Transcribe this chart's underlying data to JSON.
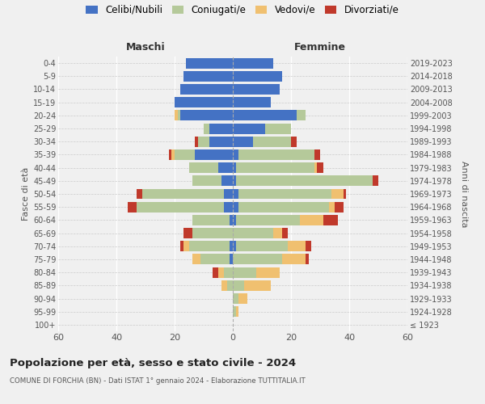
{
  "age_groups": [
    "100+",
    "95-99",
    "90-94",
    "85-89",
    "80-84",
    "75-79",
    "70-74",
    "65-69",
    "60-64",
    "55-59",
    "50-54",
    "45-49",
    "40-44",
    "35-39",
    "30-34",
    "25-29",
    "20-24",
    "15-19",
    "10-14",
    "5-9",
    "0-4"
  ],
  "birth_years": [
    "≤ 1923",
    "1924-1928",
    "1929-1933",
    "1934-1938",
    "1939-1943",
    "1944-1948",
    "1949-1953",
    "1954-1958",
    "1959-1963",
    "1964-1968",
    "1969-1973",
    "1974-1978",
    "1979-1983",
    "1984-1988",
    "1989-1993",
    "1994-1998",
    "1999-2003",
    "2004-2008",
    "2009-2013",
    "2014-2018",
    "2019-2023"
  ],
  "colors": {
    "celibe": "#4472c4",
    "coniugato": "#b5c99a",
    "vedovo": "#f0c070",
    "divorziato": "#c0392b"
  },
  "maschi": {
    "celibe": [
      0,
      0,
      0,
      0,
      0,
      1,
      1,
      0,
      1,
      3,
      3,
      4,
      5,
      13,
      8,
      8,
      18,
      20,
      18,
      17,
      16
    ],
    "coniugato": [
      0,
      0,
      0,
      2,
      3,
      10,
      14,
      14,
      13,
      30,
      28,
      10,
      10,
      7,
      4,
      2,
      1,
      0,
      0,
      0,
      0
    ],
    "vedovo": [
      0,
      0,
      0,
      2,
      2,
      3,
      2,
      0,
      0,
      0,
      0,
      0,
      0,
      1,
      0,
      0,
      1,
      0,
      0,
      0,
      0
    ],
    "divorziato": [
      0,
      0,
      0,
      0,
      2,
      0,
      1,
      3,
      0,
      3,
      2,
      0,
      0,
      1,
      1,
      0,
      0,
      0,
      0,
      0,
      0
    ]
  },
  "femmine": {
    "nubile": [
      0,
      0,
      0,
      0,
      0,
      0,
      1,
      0,
      1,
      2,
      2,
      1,
      1,
      2,
      7,
      11,
      22,
      13,
      16,
      17,
      14
    ],
    "coniugata": [
      0,
      1,
      2,
      4,
      8,
      17,
      18,
      14,
      22,
      31,
      32,
      47,
      27,
      26,
      13,
      9,
      3,
      0,
      0,
      0,
      0
    ],
    "vedova": [
      0,
      1,
      3,
      9,
      8,
      8,
      6,
      3,
      8,
      2,
      4,
      0,
      1,
      0,
      0,
      0,
      0,
      0,
      0,
      0,
      0
    ],
    "divorziata": [
      0,
      0,
      0,
      0,
      0,
      1,
      2,
      2,
      5,
      3,
      1,
      2,
      2,
      2,
      2,
      0,
      0,
      0,
      0,
      0,
      0
    ]
  },
  "xlim": 60,
  "title": "Popolazione per età, sesso e stato civile - 2024",
  "subtitle": "COMUNE DI FORCHIA (BN) - Dati ISTAT 1° gennaio 2024 - Elaborazione TUTTITALIA.IT",
  "ylabel_left": "Fasce di età",
  "ylabel_right": "Anni di nascita",
  "xlabel_left": "Maschi",
  "xlabel_right": "Femmine",
  "legend_labels": [
    "Celibi/Nubili",
    "Coniugati/e",
    "Vedovi/e",
    "Divorziati/e"
  ],
  "background_color": "#f0f0f0"
}
